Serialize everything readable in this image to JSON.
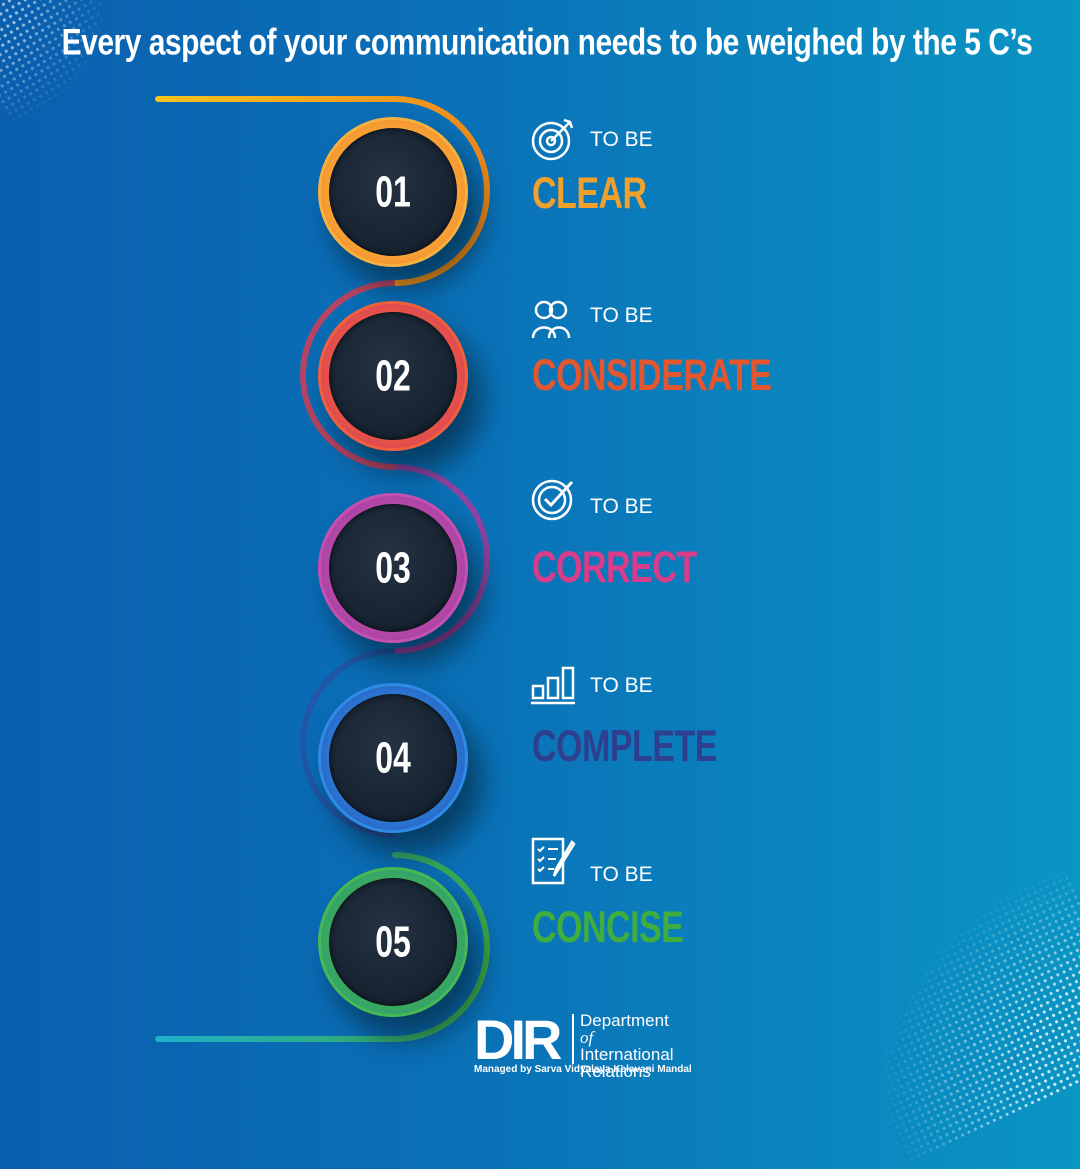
{
  "title": "Every aspect of your communication needs to be weighed by the 5 C’s",
  "items": [
    {
      "number": "01",
      "prefix": "TO BE",
      "word": "CLEAR",
      "color": "#f0a02c",
      "ring": "#f07a1c",
      "icon": "target-icon"
    },
    {
      "number": "02",
      "prefix": "TO BE",
      "word": "CONSIDERATE",
      "color": "#e4572e",
      "ring": "#e0402e",
      "icon": "users-icon"
    },
    {
      "number": "03",
      "prefix": "TO BE",
      "word": "CORRECT",
      "color": "#d93d8a",
      "ring": "#b73fa0",
      "icon": "check-circle-icon"
    },
    {
      "number": "04",
      "prefix": "TO BE",
      "word": "COMPLETE",
      "color": "#2f3f8f",
      "ring": "#1f6fd0",
      "icon": "bar-chart-icon"
    },
    {
      "number": "05",
      "prefix": "TO BE",
      "word": "CONCISE",
      "color": "#3fae3f",
      "ring": "#3aab4a",
      "icon": "document-pen-icon"
    }
  ],
  "logo": {
    "mark": "DIR",
    "line1": "Department",
    "of": "of",
    "line2": "International",
    "line3": "Relations",
    "managed_by": "Managed by Sarva Vidyalaya Kelavani Mandal"
  }
}
